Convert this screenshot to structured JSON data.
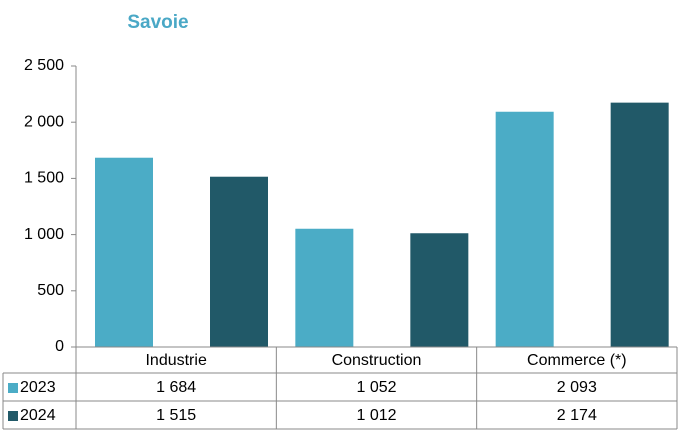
{
  "chart_data": {
    "type": "bar",
    "title": "Savoie",
    "categories": [
      "Industrie",
      "Construction",
      "Commerce (*)"
    ],
    "series": [
      {
        "name": "2023",
        "color": "#4bacc6",
        "values": [
          1684,
          1052,
          2093
        ],
        "value_labels": [
          "1 684",
          "1 052",
          "2 093"
        ]
      },
      {
        "name": "2024",
        "color": "#215968",
        "values": [
          1515,
          1012,
          2174
        ],
        "value_labels": [
          "1 515",
          "1 012",
          "2 174"
        ]
      }
    ],
    "ylim": [
      0,
      2500
    ],
    "yticks": [
      0,
      500,
      {
        "value": 1000,
        "label": "1 000"
      },
      {
        "value": 1500,
        "label": "1 500"
      },
      {
        "value": 2000,
        "label": "2 000"
      },
      {
        "value": 2500,
        "label": "2 500"
      }
    ],
    "grid": false,
    "data_table": true
  }
}
